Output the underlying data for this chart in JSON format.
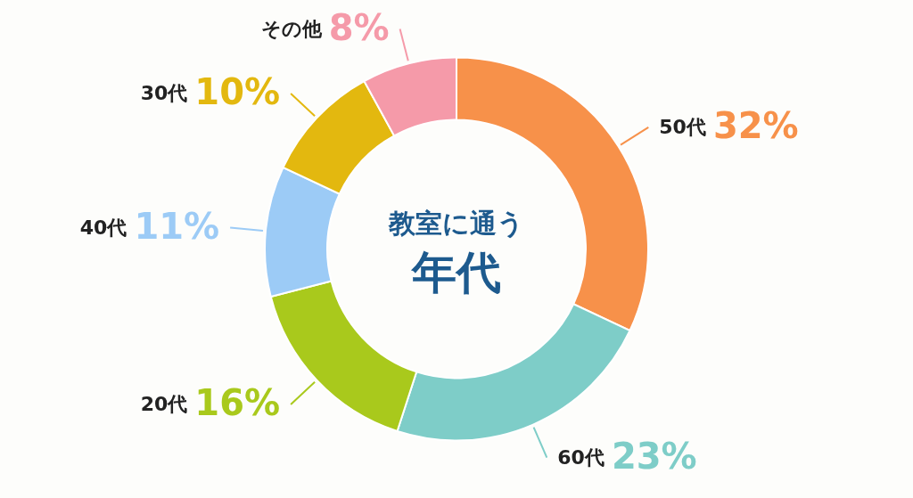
{
  "chart_data": {
    "type": "donut",
    "title": "教室に通う",
    "subtitle": "年代",
    "categories": [
      "50代",
      "60代",
      "20代",
      "40代",
      "30代",
      "その他"
    ],
    "values": [
      32,
      23,
      16,
      11,
      10,
      8
    ],
    "colors": [
      "#f7914a",
      "#7ecdc8",
      "#a9c91c",
      "#9ccbf6",
      "#e3b80f",
      "#f59aa9"
    ],
    "value_labels": [
      "32%",
      "23%",
      "16%",
      "11%",
      "10%",
      "8%"
    ]
  }
}
